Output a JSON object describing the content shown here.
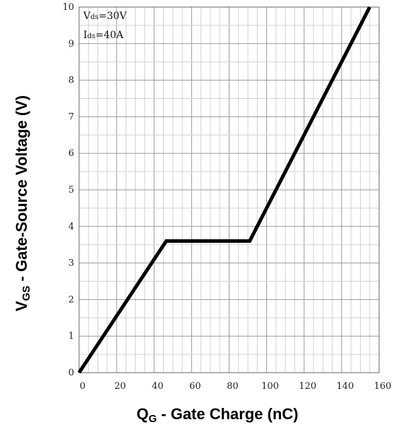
{
  "chart_data": {
    "type": "line",
    "xlabel": {
      "main": "Q",
      "sub": "G",
      "rest": " - Gate Charge (nC)"
    },
    "ylabel": {
      "main": "V",
      "sub": "GS",
      "rest": " - Gate-Source Voltage (V)"
    },
    "xlim": [
      0,
      160
    ],
    "ylim": [
      0,
      10
    ],
    "x_ticks": [
      "0",
      "20",
      "40",
      "60",
      "80",
      "100",
      "120",
      "140",
      "160"
    ],
    "y_ticks": [
      "0",
      "1",
      "2",
      "3",
      "4",
      "5",
      "6",
      "7",
      "8",
      "9",
      "10"
    ],
    "grid": true,
    "annotations": [
      {
        "main": "V",
        "sub": "ds",
        "rest": "=30V"
      },
      {
        "main": "I",
        "sub": "ds",
        "rest": "=40A"
      }
    ],
    "series": [
      {
        "color": "#000000",
        "points": [
          [
            0,
            0
          ],
          [
            46.5,
            3.6
          ],
          [
            91,
            3.6
          ],
          [
            155,
            10
          ]
        ]
      }
    ]
  }
}
